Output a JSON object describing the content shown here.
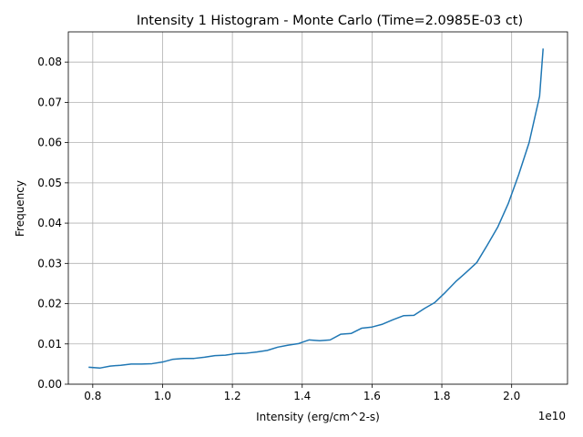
{
  "chart_data": {
    "type": "line",
    "title": "Intensity 1 Histogram - Monte Carlo (Time=2.0985E-03 ct)",
    "xlabel": "Intensity (erg/cm^2-s)",
    "ylabel": "Frequency",
    "x_offset_label": "1e10",
    "xlim": [
      0.73,
      2.16
    ],
    "ylim": [
      0.0,
      0.0875
    ],
    "xticks": [
      0.8,
      1.0,
      1.2,
      1.4,
      1.6,
      1.8,
      2.0
    ],
    "xtick_labels": [
      "0.8",
      "1.0",
      "1.2",
      "1.4",
      "1.6",
      "1.8",
      "2.0"
    ],
    "yticks": [
      0.0,
      0.01,
      0.02,
      0.03,
      0.04,
      0.05,
      0.06,
      0.07,
      0.08
    ],
    "ytick_labels": [
      "0.00",
      "0.01",
      "0.02",
      "0.03",
      "0.04",
      "0.05",
      "0.06",
      "0.07",
      "0.08"
    ],
    "grid": true,
    "color": "#1f77b4",
    "x": [
      0.79,
      0.82,
      0.85,
      0.88,
      0.91,
      0.94,
      0.97,
      1.0,
      1.03,
      1.06,
      1.09,
      1.12,
      1.15,
      1.18,
      1.21,
      1.24,
      1.27,
      1.3,
      1.33,
      1.36,
      1.39,
      1.42,
      1.45,
      1.48,
      1.51,
      1.54,
      1.57,
      1.6,
      1.63,
      1.66,
      1.69,
      1.72,
      1.75,
      1.78,
      1.81,
      1.84,
      1.87,
      1.9,
      1.93,
      1.96,
      1.99,
      2.02,
      2.05,
      2.08,
      2.09
    ],
    "y": [
      0.0042,
      0.004,
      0.0045,
      0.0047,
      0.005,
      0.005,
      0.0051,
      0.0055,
      0.0062,
      0.0064,
      0.0064,
      0.0067,
      0.0071,
      0.0072,
      0.0076,
      0.0077,
      0.008,
      0.0084,
      0.0092,
      0.0097,
      0.0101,
      0.011,
      0.0108,
      0.011,
      0.0124,
      0.0126,
      0.0139,
      0.0142,
      0.0149,
      0.016,
      0.017,
      0.0171,
      0.0188,
      0.0203,
      0.0228,
      0.0255,
      0.0278,
      0.0302,
      0.0345,
      0.039,
      0.0448,
      0.052,
      0.06,
      0.0715,
      0.0832
    ]
  }
}
